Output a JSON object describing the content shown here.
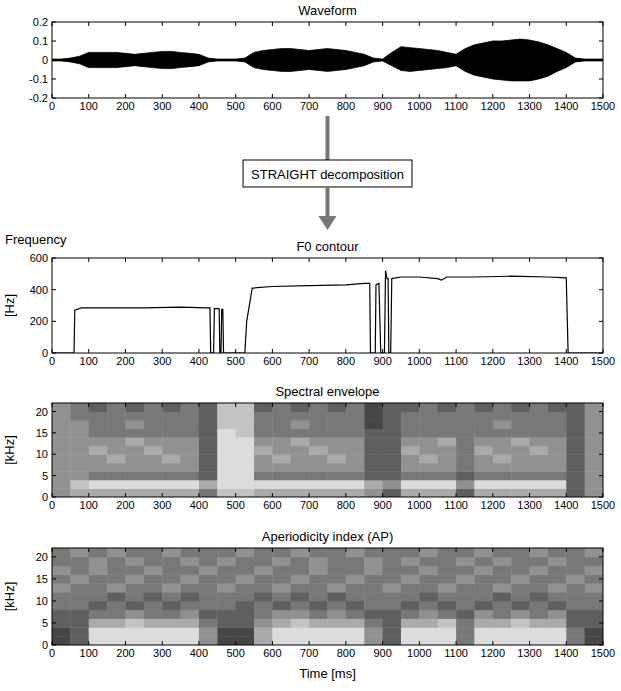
{
  "chart_data": [
    {
      "type": "area",
      "title": "Waveform",
      "x": [
        0,
        25,
        50,
        75,
        100,
        125,
        150,
        175,
        200,
        225,
        250,
        275,
        300,
        325,
        350,
        375,
        400,
        425,
        450,
        475,
        500,
        525,
        550,
        575,
        600,
        625,
        650,
        675,
        700,
        725,
        750,
        775,
        800,
        825,
        850,
        875,
        900,
        925,
        950,
        975,
        1000,
        1025,
        1050,
        1075,
        1100,
        1125,
        1150,
        1175,
        1200,
        1225,
        1250,
        1275,
        1300,
        1325,
        1350,
        1375,
        1400,
        1425,
        1450,
        1475,
        1500
      ],
      "series": [
        {
          "color": "#000000",
          "values": [
            0.005,
            0.005,
            0.01,
            0.02,
            0.04,
            0.04,
            0.04,
            0.04,
            0.035,
            0.03,
            0.035,
            0.04,
            0.045,
            0.045,
            0.04,
            0.035,
            0.03,
            0.01,
            0.005,
            0.005,
            0.005,
            0.01,
            0.04,
            0.05,
            0.055,
            0.06,
            0.06,
            0.055,
            0.05,
            0.055,
            0.06,
            0.055,
            0.05,
            0.04,
            0.03,
            0.01,
            0.005,
            0.04,
            0.07,
            0.065,
            0.06,
            0.055,
            0.05,
            0.04,
            0.03,
            0.06,
            0.08,
            0.09,
            0.1,
            0.1,
            0.105,
            0.11,
            0.105,
            0.095,
            0.08,
            0.06,
            0.04,
            0.01,
            0.005,
            0.005,
            0.005
          ]
        },
        {
          "color": "#000000",
          "values": [
            -0.005,
            -0.005,
            -0.01,
            -0.02,
            -0.04,
            -0.04,
            -0.04,
            -0.04,
            -0.035,
            -0.03,
            -0.035,
            -0.04,
            -0.045,
            -0.045,
            -0.04,
            -0.035,
            -0.03,
            -0.01,
            -0.005,
            -0.005,
            -0.005,
            -0.01,
            -0.04,
            -0.05,
            -0.055,
            -0.06,
            -0.06,
            -0.055,
            -0.05,
            -0.055,
            -0.06,
            -0.055,
            -0.05,
            -0.04,
            -0.03,
            -0.01,
            -0.005,
            -0.03,
            -0.055,
            -0.06,
            -0.055,
            -0.05,
            -0.045,
            -0.04,
            -0.03,
            -0.06,
            -0.08,
            -0.09,
            -0.1,
            -0.105,
            -0.11,
            -0.11,
            -0.11,
            -0.1,
            -0.085,
            -0.06,
            -0.04,
            -0.01,
            -0.005,
            -0.005,
            -0.005
          ]
        }
      ],
      "xlim": [
        0,
        1500
      ],
      "ylim": [
        -0.2,
        0.2
      ],
      "xticks": [
        0,
        100,
        200,
        300,
        400,
        500,
        600,
        700,
        800,
        900,
        1000,
        1100,
        1200,
        1300,
        1400,
        1500
      ],
      "yticks": [
        -0.2,
        -0.1,
        0,
        0.1,
        0.2
      ]
    },
    {
      "type": "line",
      "title": "F0 contour",
      "annotation": "Frequency",
      "y_label": "[Hz]",
      "color": "#000000",
      "x": [
        0,
        60,
        62,
        80,
        150,
        250,
        350,
        420,
        430,
        432,
        440,
        442,
        455,
        457,
        460,
        462,
        465,
        467,
        525,
        530,
        545,
        600,
        700,
        800,
        850,
        865,
        867,
        880,
        882,
        890,
        895,
        905,
        908,
        912,
        915,
        917,
        922,
        925,
        950,
        1000,
        1050,
        1060,
        1075,
        1150,
        1250,
        1350,
        1400,
        1405,
        1500
      ],
      "values": [
        0,
        0,
        270,
        285,
        285,
        285,
        290,
        285,
        285,
        0,
        0,
        280,
        280,
        0,
        0,
        275,
        275,
        0,
        0,
        200,
        410,
        420,
        425,
        430,
        440,
        440,
        0,
        0,
        430,
        440,
        0,
        0,
        520,
        470,
        470,
        0,
        0,
        470,
        480,
        480,
        470,
        460,
        480,
        480,
        485,
        480,
        475,
        0,
        0
      ],
      "xlim": [
        0,
        1500
      ],
      "ylim": [
        0,
        600
      ],
      "xticks": [
        0,
        100,
        200,
        300,
        400,
        500,
        600,
        700,
        800,
        900,
        1000,
        1100,
        1200,
        1300,
        1400,
        1500
      ],
      "yticks": [
        0,
        200,
        400,
        600
      ]
    },
    {
      "type": "heatmap",
      "title": "Spectral envelope",
      "y_label": "[kHz]",
      "x_bins": [
        0,
        50,
        100,
        150,
        200,
        250,
        300,
        350,
        400,
        450,
        500,
        550,
        600,
        650,
        700,
        750,
        800,
        850,
        900,
        950,
        1000,
        1050,
        1100,
        1150,
        1200,
        1250,
        1300,
        1350,
        1400,
        1450,
        1500
      ],
      "y_bins": [
        0,
        2,
        4,
        6,
        8,
        10,
        12,
        14,
        16,
        18,
        20,
        22
      ],
      "clim": [
        0,
        9
      ],
      "cells": [
        [
          5,
          6,
          6,
          6,
          6,
          6,
          6,
          6,
          4,
          7,
          7,
          6,
          6,
          6,
          6,
          6,
          6,
          5,
          3,
          6,
          6,
          6,
          3,
          6,
          6,
          6,
          6,
          6,
          3,
          5
        ],
        [
          5,
          7,
          8,
          8,
          8,
          8,
          8,
          8,
          6,
          8,
          8,
          8,
          8,
          8,
          8,
          8,
          8,
          6,
          5,
          8,
          8,
          8,
          5,
          8,
          8,
          8,
          8,
          8,
          3,
          5
        ],
        [
          5,
          5,
          4,
          4,
          4,
          4,
          4,
          4,
          3,
          8,
          8,
          4,
          4,
          4,
          4,
          4,
          4,
          3,
          3,
          4,
          4,
          4,
          3,
          4,
          4,
          4,
          4,
          4,
          3,
          5
        ],
        [
          5,
          5,
          5,
          5,
          5,
          5,
          5,
          5,
          3,
          8,
          8,
          5,
          5,
          5,
          5,
          5,
          5,
          3,
          3,
          5,
          5,
          5,
          4,
          5,
          5,
          5,
          5,
          5,
          3,
          5
        ],
        [
          5,
          5,
          5,
          6,
          5,
          5,
          6,
          5,
          3,
          8,
          8,
          5,
          6,
          5,
          5,
          6,
          5,
          3,
          3,
          5,
          6,
          5,
          4,
          5,
          6,
          5,
          5,
          5,
          3,
          5
        ],
        [
          5,
          5,
          6,
          5,
          5,
          6,
          5,
          5,
          3,
          8,
          8,
          6,
          5,
          5,
          6,
          5,
          5,
          3,
          3,
          6,
          5,
          5,
          4,
          6,
          5,
          5,
          6,
          5,
          3,
          5
        ],
        [
          5,
          5,
          5,
          5,
          6,
          5,
          5,
          5,
          3,
          8,
          8,
          5,
          5,
          6,
          5,
          5,
          5,
          3,
          3,
          5,
          5,
          6,
          4,
          5,
          5,
          6,
          5,
          5,
          3,
          5
        ],
        [
          5,
          5,
          4,
          4,
          4,
          4,
          4,
          4,
          3,
          8,
          7,
          4,
          4,
          4,
          4,
          4,
          4,
          3,
          3,
          4,
          4,
          4,
          4,
          4,
          4,
          4,
          4,
          4,
          3,
          5
        ],
        [
          5,
          5,
          4,
          4,
          5,
          4,
          4,
          4,
          3,
          7,
          7,
          4,
          4,
          5,
          4,
          4,
          4,
          2,
          3,
          4,
          4,
          4,
          4,
          4,
          5,
          4,
          4,
          4,
          3,
          5
        ],
        [
          5,
          4,
          4,
          4,
          4,
          4,
          4,
          4,
          3,
          7,
          7,
          4,
          4,
          4,
          4,
          4,
          4,
          2,
          3,
          4,
          4,
          4,
          4,
          4,
          4,
          4,
          4,
          4,
          3,
          5
        ],
        [
          5,
          4,
          3,
          4,
          3,
          4,
          3,
          4,
          3,
          7,
          7,
          3,
          4,
          3,
          4,
          3,
          4,
          2,
          3,
          3,
          4,
          3,
          4,
          3,
          4,
          3,
          4,
          3,
          3,
          5
        ]
      ],
      "xlim": [
        0,
        1500
      ],
      "ylim": [
        0,
        22
      ],
      "xticks": [
        0,
        100,
        200,
        300,
        400,
        500,
        600,
        700,
        800,
        900,
        1000,
        1100,
        1200,
        1300,
        1400,
        1500
      ],
      "yticks": [
        0,
        5,
        10,
        15,
        20
      ]
    },
    {
      "type": "heatmap",
      "title": "Aperiodicity index (AP)",
      "y_label": "[kHz]",
      "x_label": "Time [ms]",
      "x_bins": [
        0,
        50,
        100,
        150,
        200,
        250,
        300,
        350,
        400,
        450,
        500,
        550,
        600,
        650,
        700,
        750,
        800,
        850,
        900,
        950,
        1000,
        1050,
        1100,
        1150,
        1200,
        1250,
        1300,
        1350,
        1400,
        1450,
        1500
      ],
      "y_bins": [
        0,
        2,
        4,
        6,
        8,
        10,
        12,
        14,
        16,
        18,
        20,
        22
      ],
      "clim": [
        0,
        9
      ],
      "cells": [
        [
          2,
          3,
          8,
          8,
          8,
          8,
          8,
          8,
          5,
          2,
          2,
          6,
          8,
          8,
          8,
          8,
          8,
          5,
          3,
          8,
          8,
          8,
          4,
          8,
          8,
          8,
          8,
          8,
          4,
          2
        ],
        [
          2,
          3,
          8,
          8,
          8,
          8,
          8,
          8,
          5,
          2,
          2,
          6,
          8,
          8,
          8,
          8,
          8,
          5,
          3,
          8,
          8,
          8,
          4,
          8,
          8,
          8,
          8,
          8,
          4,
          2
        ],
        [
          3,
          3,
          6,
          6,
          7,
          6,
          6,
          6,
          4,
          3,
          3,
          5,
          6,
          7,
          6,
          6,
          6,
          4,
          3,
          6,
          6,
          7,
          4,
          6,
          6,
          7,
          6,
          6,
          3,
          3
        ],
        [
          3,
          3,
          4,
          4,
          5,
          4,
          4,
          5,
          3,
          3,
          3,
          4,
          5,
          5,
          4,
          5,
          4,
          3,
          3,
          4,
          5,
          4,
          3,
          5,
          4,
          5,
          4,
          5,
          3,
          3
        ],
        [
          4,
          4,
          3,
          4,
          3,
          4,
          3,
          4,
          4,
          4,
          3,
          4,
          3,
          4,
          3,
          4,
          3,
          4,
          4,
          3,
          4,
          3,
          4,
          3,
          4,
          3,
          4,
          3,
          4,
          4
        ],
        [
          4,
          4,
          4,
          3,
          4,
          3,
          4,
          3,
          4,
          4,
          4,
          3,
          4,
          3,
          4,
          3,
          4,
          4,
          4,
          4,
          3,
          4,
          4,
          4,
          3,
          4,
          3,
          4,
          4,
          4
        ],
        [
          5,
          4,
          4,
          5,
          4,
          4,
          5,
          4,
          4,
          5,
          4,
          4,
          5,
          4,
          4,
          5,
          4,
          4,
          5,
          4,
          4,
          5,
          4,
          4,
          5,
          4,
          4,
          5,
          4,
          5
        ],
        [
          4,
          5,
          4,
          4,
          5,
          4,
          4,
          5,
          4,
          4,
          5,
          4,
          4,
          5,
          4,
          4,
          5,
          4,
          4,
          5,
          4,
          4,
          5,
          4,
          4,
          5,
          4,
          4,
          5,
          4
        ],
        [
          5,
          4,
          5,
          4,
          4,
          5,
          4,
          4,
          5,
          4,
          4,
          5,
          4,
          4,
          5,
          4,
          4,
          5,
          4,
          4,
          5,
          4,
          4,
          5,
          4,
          4,
          5,
          4,
          4,
          5
        ],
        [
          4,
          4,
          5,
          4,
          5,
          4,
          4,
          5,
          4,
          5,
          4,
          4,
          5,
          4,
          5,
          4,
          4,
          5,
          4,
          5,
          4,
          4,
          5,
          4,
          5,
          4,
          4,
          5,
          4,
          4
        ],
        [
          4,
          5,
          4,
          5,
          4,
          4,
          5,
          4,
          4,
          4,
          5,
          4,
          4,
          5,
          4,
          4,
          5,
          4,
          4,
          4,
          5,
          4,
          4,
          5,
          4,
          4,
          5,
          4,
          4,
          5
        ]
      ],
      "xlim": [
        0,
        1500
      ],
      "ylim": [
        0,
        22
      ],
      "xticks": [
        0,
        100,
        200,
        300,
        400,
        500,
        600,
        700,
        800,
        900,
        1000,
        1100,
        1200,
        1300,
        1400,
        1500
      ],
      "yticks": [
        0,
        5,
        10,
        15,
        20
      ]
    }
  ],
  "diagram": {
    "step": "STRAIGHT decomposition"
  }
}
